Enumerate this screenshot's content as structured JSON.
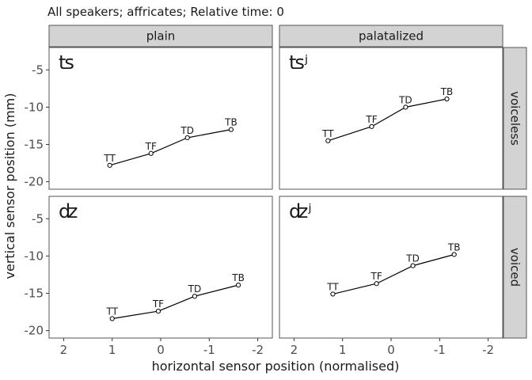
{
  "chart_data": {
    "type": "line",
    "title": "All speakers; affricates; Relative time: 0",
    "xlabel": "horizontal sensor position (normalised)",
    "ylabel": "vertical sensor position (mm)",
    "x_reversed": true,
    "xlim": [
      2.3,
      -2.3
    ],
    "ylim": [
      -21,
      -2
    ],
    "x_ticks": [
      2,
      1,
      0,
      -1,
      -2
    ],
    "y_ticks": [
      -5,
      -10,
      -15,
      -20
    ],
    "x_tick_labels": [
      "2",
      "1",
      "0",
      "-1",
      "-2"
    ],
    "y_tick_labels": [
      "-5",
      "-10",
      "-15",
      "-20"
    ],
    "col_facets": [
      "plain",
      "palatalized"
    ],
    "row_facets": [
      "voiceless",
      "voiced"
    ],
    "panels": [
      {
        "col": "plain",
        "row": "voiceless",
        "phone": "ʦ",
        "points": [
          {
            "label": "TT",
            "x": 1.05,
            "y": -17.8
          },
          {
            "label": "TF",
            "x": 0.2,
            "y": -16.2
          },
          {
            "label": "TD",
            "x": -0.55,
            "y": -14.1
          },
          {
            "label": "TB",
            "x": -1.45,
            "y": -13.0
          }
        ]
      },
      {
        "col": "palatalized",
        "row": "voiceless",
        "phone": "ʦʲ",
        "points": [
          {
            "label": "TT",
            "x": 1.3,
            "y": -14.5
          },
          {
            "label": "TF",
            "x": 0.4,
            "y": -12.6
          },
          {
            "label": "TD",
            "x": -0.3,
            "y": -10.0
          },
          {
            "label": "TB",
            "x": -1.15,
            "y": -8.9
          }
        ]
      },
      {
        "col": "plain",
        "row": "voiced",
        "phone": "ʣ",
        "points": [
          {
            "label": "TT",
            "x": 1.0,
            "y": -18.4
          },
          {
            "label": "TF",
            "x": 0.05,
            "y": -17.4
          },
          {
            "label": "TD",
            "x": -0.7,
            "y": -15.4
          },
          {
            "label": "TB",
            "x": -1.6,
            "y": -13.9
          }
        ]
      },
      {
        "col": "palatalized",
        "row": "voiced",
        "phone": "ʣʲ",
        "points": [
          {
            "label": "TT",
            "x": 1.2,
            "y": -15.1
          },
          {
            "label": "TF",
            "x": 0.3,
            "y": -13.7
          },
          {
            "label": "TD",
            "x": -0.45,
            "y": -11.3
          },
          {
            "label": "TB",
            "x": -1.3,
            "y": -9.8
          }
        ]
      }
    ],
    "colors": {
      "panel_background": "#ffffff",
      "panel_border": "#555555",
      "strip_fill": "#d3d3d3",
      "line": "#000000",
      "point_fill": "#ffffff"
    }
  }
}
